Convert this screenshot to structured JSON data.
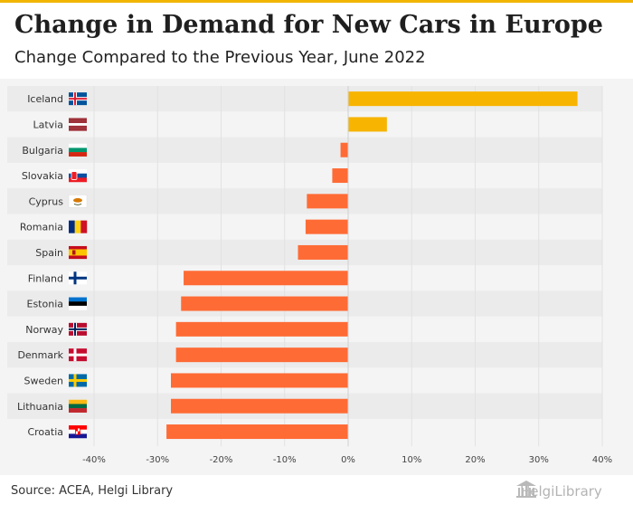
{
  "header": {
    "title": "Change in Demand for New Cars in Europe",
    "subtitle": "Change Compared to the Previous Year, June 2022"
  },
  "footer": {
    "source": "Source: ACEA, Helgi Library",
    "logo_text": "HelgiLibrary"
  },
  "colors": {
    "accent": "#f2b600",
    "positive": "#f7b400",
    "negative": "#ff6b35",
    "band": "#ebebeb"
  },
  "chart_data": {
    "type": "bar",
    "orientation": "horizontal",
    "categories": [
      "Iceland",
      "Latvia",
      "Bulgaria",
      "Slovakia",
      "Cyprus",
      "Romania",
      "Spain",
      "Finland",
      "Estonia",
      "Norway",
      "Denmark",
      "Sweden",
      "Lithuania",
      "Croatia"
    ],
    "values": [
      36.1,
      6.1,
      -1.2,
      -2.5,
      -6.5,
      -6.7,
      -7.9,
      -25.9,
      -26.3,
      -27.1,
      -27.1,
      -27.9,
      -27.9,
      -28.6
    ],
    "xlim": [
      -40,
      40
    ],
    "xticks": [
      "-40%",
      "-30%",
      "-20%",
      "-10%",
      "0%",
      "10%",
      "20%",
      "30%",
      "40%"
    ],
    "grid": true,
    "legend": "none"
  }
}
